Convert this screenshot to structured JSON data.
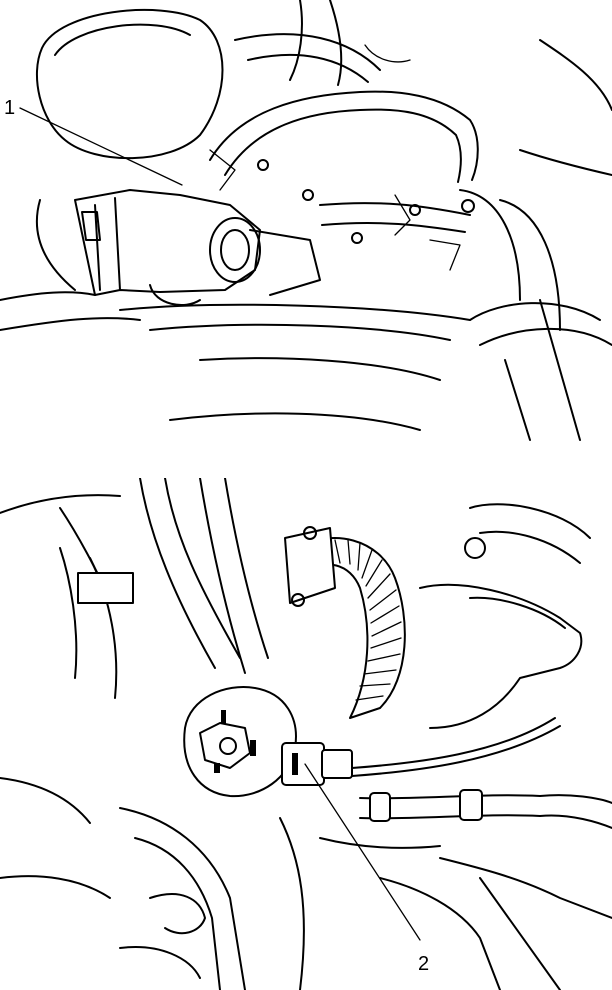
{
  "figure": {
    "top_panel": {
      "callout": "1"
    },
    "bottom_panel": {
      "callout": "2"
    }
  },
  "icons": [
    "engine-line-art",
    "leader-line",
    "corrugated-hose",
    "electrical-connector"
  ]
}
